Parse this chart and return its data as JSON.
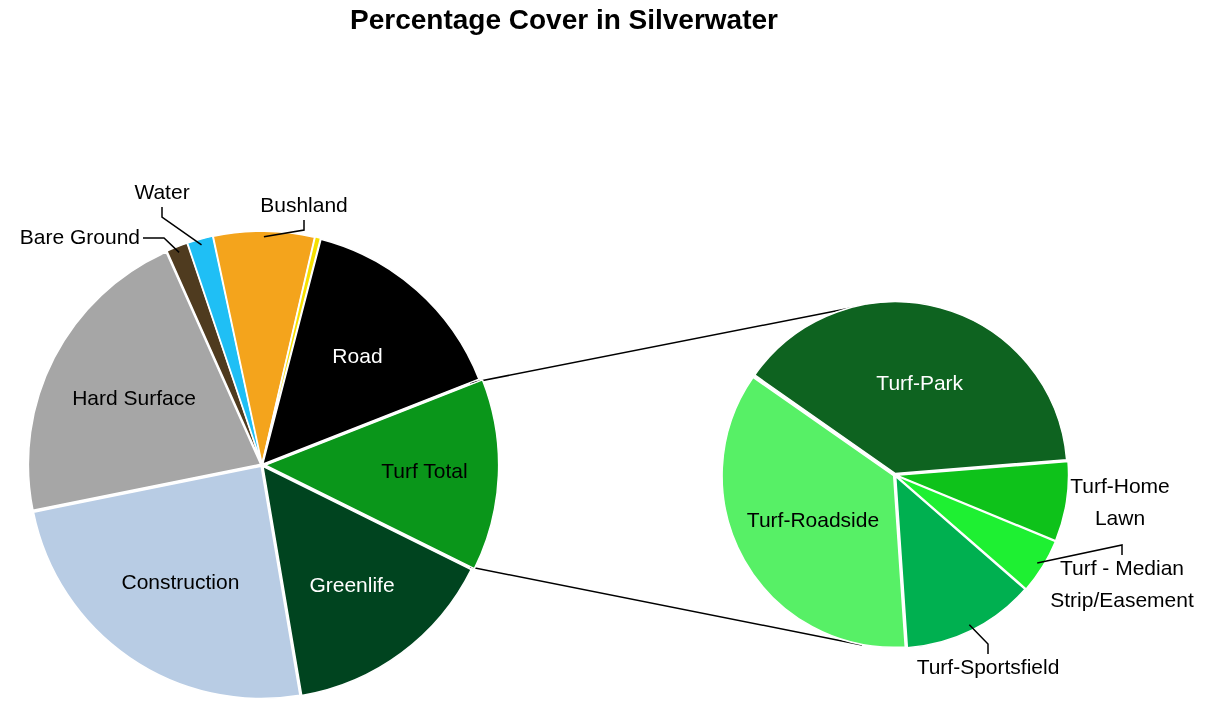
{
  "chart_data": [
    {
      "type": "pie",
      "title": "Percentage Cover in Silverwater",
      "categories": [
        "Bare Ground",
        "Water",
        "Bushland",
        null,
        "Road",
        "Turf Total",
        "Greenlife",
        "Construction",
        "Hard Surface"
      ],
      "values": [
        1.5,
        1.8,
        7,
        0.4,
        15,
        13.3,
        15,
        24.5,
        21.5
      ],
      "colors": [
        "#4f3b1f",
        "#1fbff5",
        "#f4a41c",
        "#f5e000",
        "#000000",
        "#0a961a",
        "#00441f",
        "#b8cce4",
        "#a6a6a6"
      ],
      "legend": false
    },
    {
      "type": "pie",
      "categories": [
        "Turf-Park",
        "Turf-Home Lawn",
        "Turf - Median Strip/Easement",
        "Turf-Sportsfield",
        "Turf-Roadside"
      ],
      "values": [
        39,
        7.5,
        5.2,
        12.5,
        35.8
      ],
      "colors": [
        "#0e6320",
        "#0ec21a",
        "#1ef032",
        "#00b050",
        "#57f066"
      ],
      "legend": false
    }
  ]
}
